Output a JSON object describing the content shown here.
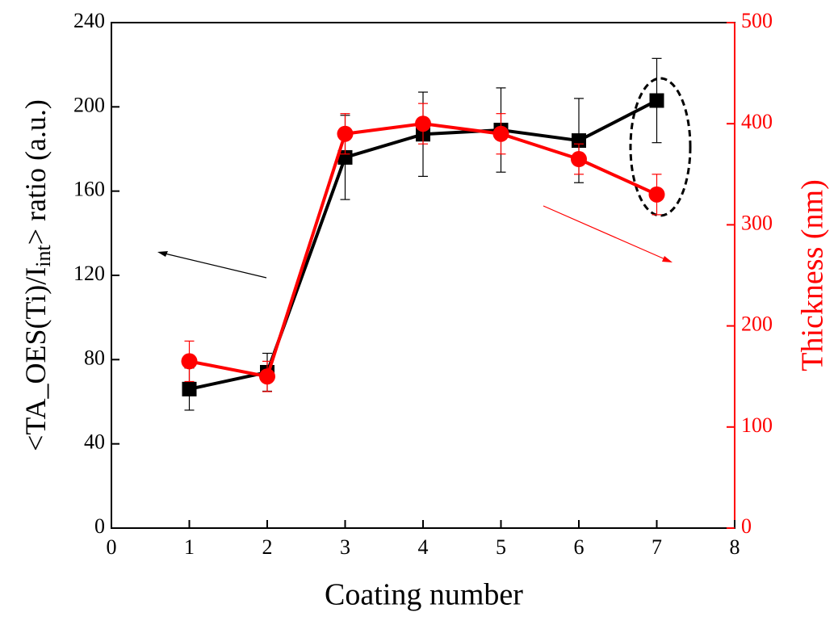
{
  "chart_data": {
    "type": "line",
    "xlabel": "Coating number",
    "ylabel": [
      "<TA_OES(Ti)/I",
      "int",
      "> ratio (a.u.)"
    ],
    "y2label": "Thickness (nm)",
    "x": [
      1,
      2,
      3,
      4,
      5,
      6,
      7
    ],
    "xlim": [
      0,
      8
    ],
    "xticks": [
      0,
      1,
      2,
      3,
      4,
      5,
      6,
      7,
      8
    ],
    "ylim": [
      0,
      240
    ],
    "yticks": [
      0,
      40,
      80,
      120,
      160,
      200,
      240
    ],
    "y2lim": [
      0,
      500
    ],
    "y2ticks": [
      0,
      100,
      200,
      300,
      400,
      500
    ],
    "series": [
      {
        "color": "#000000",
        "marker": "square",
        "values": [
          66,
          74,
          176,
          187,
          189,
          184,
          203
        ],
        "errors": [
          10,
          9,
          20,
          20,
          20,
          20,
          20
        ]
      },
      {
        "color": "#ff0000",
        "marker": "circle",
        "axis": "y2",
        "values": [
          165,
          150,
          390,
          400,
          390,
          365,
          330
        ],
        "errors": [
          20,
          15,
          20,
          20,
          20,
          15,
          20
        ]
      }
    ]
  }
}
